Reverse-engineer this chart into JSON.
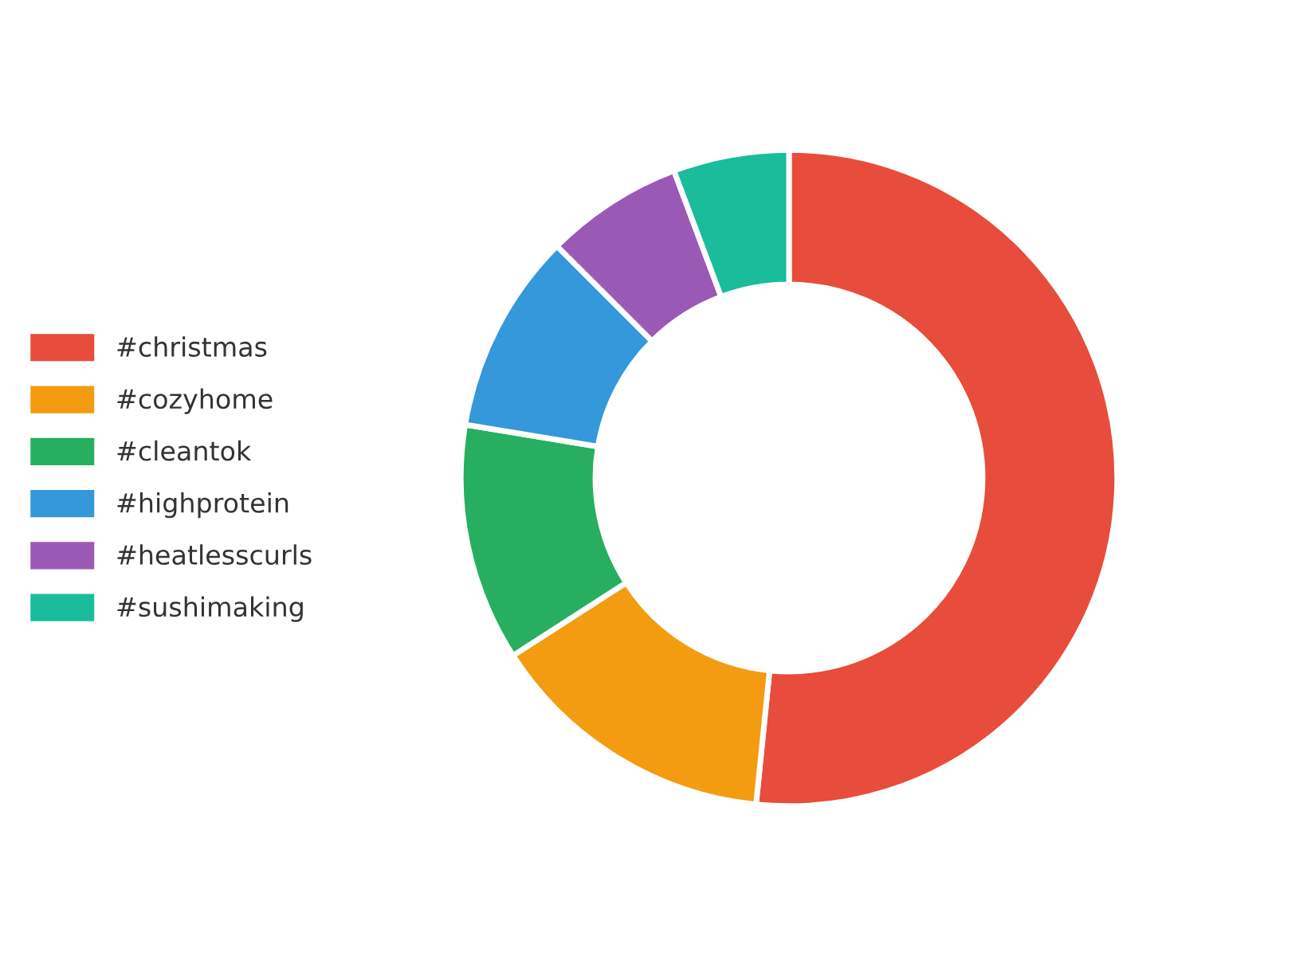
{
  "chart_data": {
    "type": "donut",
    "categories": [
      "#christmas",
      "#cozyhome",
      "#cleantok",
      "#highprotein",
      "#heatlesscurls",
      "#sushimaking"
    ],
    "values": [
      51.6,
      14.3,
      11.7,
      9.9,
      6.8,
      5.7
    ],
    "colors": [
      "#e74c3c",
      "#f39c12",
      "#27ae60",
      "#3498db",
      "#9b59b6",
      "#1abc9c"
    ],
    "legend": "left"
  }
}
